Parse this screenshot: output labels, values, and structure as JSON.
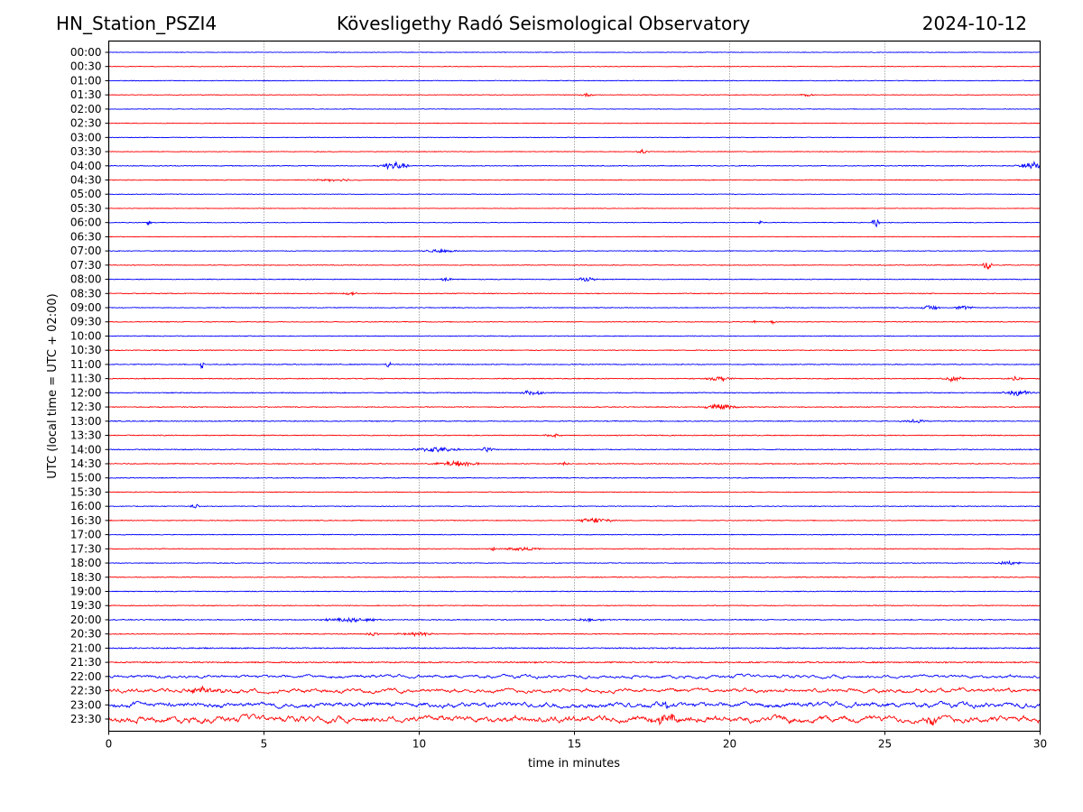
{
  "header": {
    "station": "HN_Station_PSZI4",
    "observatory": "Kövesligethy Radó Seismological Observatory",
    "date": "2024-10-12"
  },
  "chart_data": {
    "type": "line",
    "title": "Kövesligethy Radó Seismological Observatory",
    "subtitle_left": "HN_Station_PSZI4",
    "subtitle_right": "2024-10-12",
    "xlabel": "time in minutes",
    "ylabel": "UTC (local time = UTC + 02:00)",
    "xlim": [
      0,
      30
    ],
    "xticks": [
      "0",
      "5",
      "10",
      "15",
      "20",
      "25",
      "30"
    ],
    "grid": "vertical dotted at x ticks",
    "series_colors": [
      "#0000ff",
      "#ff0000"
    ],
    "rows": [
      {
        "label": "00:00",
        "noise": 0.6,
        "events": []
      },
      {
        "label": "00:30",
        "noise": 0.6,
        "events": []
      },
      {
        "label": "01:00",
        "noise": 0.7,
        "events": []
      },
      {
        "label": "01:30",
        "noise": 0.6,
        "events": [
          {
            "t": 15.4,
            "amp": 2,
            "dur": 0.3
          },
          {
            "t": 22.5,
            "amp": 1.5,
            "dur": 0.3
          }
        ]
      },
      {
        "label": "02:00",
        "noise": 0.6,
        "events": []
      },
      {
        "label": "02:30",
        "noise": 0.6,
        "events": []
      },
      {
        "label": "03:00",
        "noise": 0.6,
        "events": []
      },
      {
        "label": "03:30",
        "noise": 0.7,
        "events": [
          {
            "t": 17.2,
            "amp": 2,
            "dur": 0.3
          }
        ]
      },
      {
        "label": "04:00",
        "noise": 0.8,
        "events": [
          {
            "t": 9.2,
            "amp": 5,
            "dur": 0.6
          },
          {
            "t": 29.7,
            "amp": 5,
            "dur": 0.6
          }
        ]
      },
      {
        "label": "04:30",
        "noise": 0.8,
        "events": [
          {
            "t": 7.3,
            "amp": 1.5,
            "dur": 1.0
          }
        ]
      },
      {
        "label": "05:00",
        "noise": 0.6,
        "events": []
      },
      {
        "label": "05:30",
        "noise": 0.6,
        "events": []
      },
      {
        "label": "06:00",
        "noise": 0.6,
        "events": [
          {
            "t": 1.3,
            "amp": 5,
            "dur": 0.1
          },
          {
            "t": 21.0,
            "amp": 3,
            "dur": 0.1
          },
          {
            "t": 24.7,
            "amp": 6,
            "dur": 0.15
          }
        ]
      },
      {
        "label": "06:30",
        "noise": 0.6,
        "events": []
      },
      {
        "label": "07:00",
        "noise": 0.7,
        "events": [
          {
            "t": 10.7,
            "amp": 2,
            "dur": 0.8
          }
        ]
      },
      {
        "label": "07:30",
        "noise": 0.7,
        "events": [
          {
            "t": 28.3,
            "amp": 5,
            "dur": 0.2
          }
        ]
      },
      {
        "label": "08:00",
        "noise": 0.8,
        "events": [
          {
            "t": 15.4,
            "amp": 2.5,
            "dur": 0.4
          },
          {
            "t": 10.9,
            "amp": 2,
            "dur": 0.3
          }
        ]
      },
      {
        "label": "08:30",
        "noise": 0.8,
        "events": [
          {
            "t": 7.8,
            "amp": 2.5,
            "dur": 0.3
          }
        ]
      },
      {
        "label": "09:00",
        "noise": 0.8,
        "events": [
          {
            "t": 26.5,
            "amp": 3,
            "dur": 0.4
          },
          {
            "t": 27.5,
            "amp": 2,
            "dur": 0.5
          }
        ]
      },
      {
        "label": "09:30",
        "noise": 0.8,
        "events": [
          {
            "t": 20.8,
            "amp": 3,
            "dur": 0.1
          },
          {
            "t": 21.4,
            "amp": 3,
            "dur": 0.1
          }
        ]
      },
      {
        "label": "10:00",
        "noise": 0.8,
        "events": []
      },
      {
        "label": "10:30",
        "noise": 0.8,
        "events": []
      },
      {
        "label": "11:00",
        "noise": 0.9,
        "events": [
          {
            "t": 3.0,
            "amp": 5,
            "dur": 0.1
          },
          {
            "t": 9.0,
            "amp": 5,
            "dur": 0.1
          }
        ]
      },
      {
        "label": "11:30",
        "noise": 0.9,
        "events": [
          {
            "t": 19.7,
            "amp": 2.5,
            "dur": 0.6
          },
          {
            "t": 27.2,
            "amp": 3,
            "dur": 0.5
          },
          {
            "t": 29.2,
            "amp": 2.5,
            "dur": 0.3
          }
        ]
      },
      {
        "label": "12:00",
        "noise": 0.9,
        "events": [
          {
            "t": 13.6,
            "amp": 3,
            "dur": 0.5
          },
          {
            "t": 29.3,
            "amp": 4,
            "dur": 0.6
          }
        ]
      },
      {
        "label": "12:30",
        "noise": 0.9,
        "events": [
          {
            "t": 19.7,
            "amp": 3,
            "dur": 0.8
          }
        ]
      },
      {
        "label": "13:00",
        "noise": 0.9,
        "events": [
          {
            "t": 26.0,
            "amp": 2,
            "dur": 0.6
          }
        ]
      },
      {
        "label": "13:30",
        "noise": 0.9,
        "events": [
          {
            "t": 14.3,
            "amp": 2,
            "dur": 0.4
          }
        ]
      },
      {
        "label": "14:00",
        "noise": 0.9,
        "events": [
          {
            "t": 10.5,
            "amp": 3,
            "dur": 1.0
          },
          {
            "t": 12.2,
            "amp": 3,
            "dur": 0.3
          }
        ]
      },
      {
        "label": "14:30",
        "noise": 0.9,
        "events": [
          {
            "t": 11.2,
            "amp": 3,
            "dur": 1.0
          },
          {
            "t": 14.7,
            "amp": 2,
            "dur": 0.2
          }
        ]
      },
      {
        "label": "15:00",
        "noise": 0.8,
        "events": []
      },
      {
        "label": "15:30",
        "noise": 0.8,
        "events": []
      },
      {
        "label": "16:00",
        "noise": 0.8,
        "events": [
          {
            "t": 2.8,
            "amp": 2,
            "dur": 0.3
          }
        ]
      },
      {
        "label": "16:30",
        "noise": 0.8,
        "events": [
          {
            "t": 15.7,
            "amp": 3,
            "dur": 0.8
          }
        ]
      },
      {
        "label": "17:00",
        "noise": 0.8,
        "events": []
      },
      {
        "label": "17:30",
        "noise": 0.8,
        "events": [
          {
            "t": 12.4,
            "amp": 3,
            "dur": 0.1
          },
          {
            "t": 13.3,
            "amp": 2,
            "dur": 0.8
          }
        ]
      },
      {
        "label": "18:00",
        "noise": 0.8,
        "events": [
          {
            "t": 29.0,
            "amp": 2,
            "dur": 0.6
          }
        ]
      },
      {
        "label": "18:30",
        "noise": 0.8,
        "events": []
      },
      {
        "label": "19:00",
        "noise": 0.8,
        "events": []
      },
      {
        "label": "19:30",
        "noise": 0.8,
        "events": []
      },
      {
        "label": "20:00",
        "noise": 1.0,
        "events": [
          {
            "t": 7.8,
            "amp": 2.5,
            "dur": 1.2
          },
          {
            "t": 15.5,
            "amp": 1.5,
            "dur": 0.8
          }
        ]
      },
      {
        "label": "20:30",
        "noise": 1.0,
        "events": [
          {
            "t": 9.9,
            "amp": 2,
            "dur": 1.0
          },
          {
            "t": 8.5,
            "amp": 2,
            "dur": 0.3
          }
        ]
      },
      {
        "label": "21:00",
        "noise": 1.2,
        "events": []
      },
      {
        "label": "21:30",
        "noise": 1.3,
        "events": []
      },
      {
        "label": "22:00",
        "noise": 2.0,
        "events": []
      },
      {
        "label": "22:30",
        "noise": 2.6,
        "events": [
          {
            "t": 3.1,
            "amp": 3,
            "dur": 0.8
          }
        ]
      },
      {
        "label": "23:00",
        "noise": 3.2,
        "events": [
          {
            "t": 17.9,
            "amp": 6,
            "dur": 0.15
          }
        ]
      },
      {
        "label": "23:30",
        "noise": 4.0,
        "events": [
          {
            "t": 17.9,
            "amp": 6,
            "dur": 0.6
          },
          {
            "t": 26.5,
            "amp": 8,
            "dur": 0.2
          }
        ]
      }
    ]
  }
}
